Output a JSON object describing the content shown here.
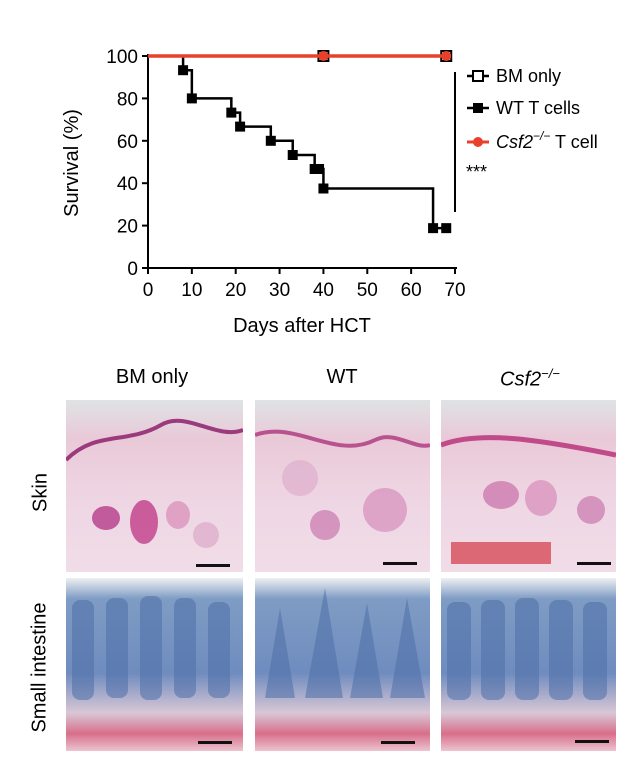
{
  "chart_data": {
    "type": "line",
    "xlabel": "Days after HCT",
    "ylabel": "Survival (%)",
    "xlim": [
      0,
      70
    ],
    "ylim": [
      0,
      100
    ],
    "xticks": [
      0,
      10,
      20,
      30,
      40,
      50,
      60,
      70
    ],
    "yticks": [
      0,
      20,
      40,
      60,
      80,
      100
    ],
    "significance": "***",
    "legend_position": "right",
    "series": [
      {
        "name": "BM only",
        "color": "#000000",
        "marker": "open-square",
        "x": [
          0,
          40,
          68
        ],
        "y": [
          100,
          100,
          100
        ],
        "marker_x": [
          40,
          68
        ],
        "marker_y": [
          100,
          100
        ]
      },
      {
        "name": "WT T cells",
        "color": "#000000",
        "marker": "filled-square",
        "x": [
          0,
          8,
          8,
          10,
          10,
          19,
          19,
          21,
          21,
          28,
          28,
          33,
          33,
          38,
          38,
          40,
          40,
          65,
          65,
          68
        ],
        "y": [
          100,
          100,
          93.3,
          93.3,
          80,
          80,
          73.3,
          73.3,
          66.7,
          66.7,
          60,
          60,
          53.3,
          53.3,
          46.7,
          46.7,
          37.5,
          37.5,
          18.8,
          18.8
        ],
        "marker_x": [
          8,
          10,
          19,
          21,
          28,
          33,
          38,
          39,
          40,
          65,
          68
        ],
        "marker_y": [
          93.3,
          80,
          73.3,
          66.7,
          60,
          53.3,
          46.7,
          46.7,
          37.5,
          18.8,
          18.8
        ]
      },
      {
        "name_prefix": "Csf2",
        "name_superscript": "−/−",
        "name_suffix": " T cell",
        "color": "#e8402a",
        "marker": "filled-circle",
        "x": [
          0,
          40,
          68
        ],
        "y": [
          100,
          100,
          100
        ],
        "marker_x": [
          40,
          68
        ],
        "marker_y": [
          100,
          100
        ]
      }
    ]
  },
  "histology": {
    "columns": [
      {
        "label": "BM only",
        "italic": false
      },
      {
        "label": "WT",
        "italic": false
      },
      {
        "label_prefix": "Csf2",
        "label_superscript": "−/−",
        "italic": true
      }
    ],
    "rows": [
      "Skin",
      "Small intestine"
    ]
  }
}
